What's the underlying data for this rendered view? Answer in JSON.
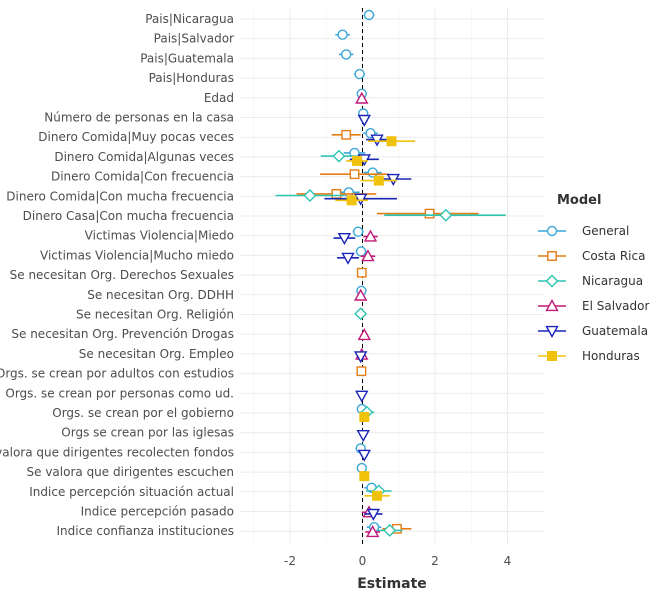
{
  "chart_data": {
    "type": "coefficient-plot",
    "title": "",
    "xlabel": "Estimate",
    "ylabel": "",
    "xlim": [
      -2.9,
      4.5
    ],
    "xticks": [
      -2,
      0,
      2,
      4
    ],
    "grid": true,
    "reference_line_x": 0,
    "legend": {
      "title": "Model",
      "position": "right"
    },
    "variables": [
      "Pais|Nicaragua",
      "Pais|Salvador",
      "Pais|Guatemala",
      "Pais|Honduras",
      "Edad",
      "Número de personas en la casa",
      "Dinero Comida|Muy pocas veces",
      "Dinero Comida|Algunas veces",
      "Dinero Comida|Con frecuencia",
      "Dinero Comida|Con mucha frecuencia",
      "Dinero Casa|Con mucha frecuencia",
      "Victimas Violencia|Miedo",
      "Victimas Violencia|Mucho miedo",
      "Se necesitan Org. Derechos Sexuales",
      "Se necesitan Org. DDHH",
      "Se necesitan Org. Religión",
      "Se necesitan Org. Prevención Drogas",
      "Se necesitan Org. Empleo",
      "Orgs. se crean por adultos con estudios",
      "Orgs. se crean por personas como ud.",
      "Orgs. se crean por el gobierno",
      "Orgs se crean por las iglesas",
      "Se valora que dirigentes recolecten fondos",
      "Se valora que dirigentes escuchen",
      "Indice percepción situación actual",
      "Indice percepción pasado",
      "Indice confianza instituciones"
    ],
    "series": [
      {
        "name": "General",
        "color": "#3aa6d9",
        "shape": "circle",
        "estimates": [
          0.18,
          -0.55,
          -0.45,
          -0.08,
          -0.02,
          0.02,
          0.22,
          -0.22,
          0.28,
          -0.38,
          null,
          -0.12,
          -0.04,
          null,
          -0.03,
          null,
          null,
          null,
          null,
          null,
          -0.02,
          null,
          -0.05,
          -0.02,
          0.25,
          null,
          0.32
        ],
        "lower": [
          0.03,
          -0.75,
          -0.65,
          -0.23,
          -0.07,
          -0.03,
          0.02,
          -0.52,
          0.03,
          -0.68,
          null,
          -0.27,
          -0.19,
          null,
          -0.13,
          null,
          null,
          null,
          null,
          null,
          -0.12,
          null,
          -0.15,
          -0.12,
          0.05,
          null,
          0.12
        ],
        "upper": [
          0.33,
          -0.35,
          -0.25,
          0.07,
          0.03,
          0.07,
          0.42,
          0.08,
          0.53,
          -0.08,
          null,
          0.03,
          0.11,
          null,
          0.07,
          null,
          null,
          null,
          null,
          null,
          0.08,
          null,
          0.05,
          0.08,
          0.45,
          null,
          0.52
        ]
      },
      {
        "name": "Costa Rica",
        "color": "#e57e14",
        "shape": "square",
        "estimates": [
          null,
          null,
          null,
          null,
          null,
          null,
          -0.45,
          null,
          -0.22,
          -0.72,
          1.85,
          null,
          null,
          -0.02,
          null,
          null,
          null,
          null,
          -0.03,
          null,
          null,
          null,
          null,
          null,
          null,
          null,
          0.95
        ],
        "lower": [
          null,
          null,
          null,
          null,
          null,
          null,
          -0.85,
          null,
          -1.17,
          -1.82,
          0.4,
          null,
          null,
          -0.12,
          null,
          null,
          null,
          null,
          -0.13,
          null,
          null,
          null,
          null,
          null,
          null,
          null,
          0.55
        ],
        "upper": [
          null,
          null,
          null,
          null,
          null,
          null,
          -0.05,
          null,
          0.73,
          0.38,
          3.2,
          null,
          null,
          0.08,
          null,
          null,
          null,
          null,
          0.07,
          null,
          null,
          null,
          null,
          null,
          null,
          null,
          1.35
        ]
      },
      {
        "name": "Nicaragua",
        "color": "#2ec4b0",
        "shape": "diamond",
        "estimates": [
          null,
          null,
          null,
          null,
          null,
          null,
          null,
          -0.65,
          null,
          -1.45,
          2.3,
          null,
          null,
          null,
          null,
          -0.05,
          null,
          null,
          null,
          null,
          0.12,
          null,
          null,
          null,
          0.45,
          null,
          0.75
        ],
        "lower": [
          null,
          null,
          null,
          null,
          null,
          null,
          null,
          -1.15,
          null,
          -2.4,
          0.6,
          null,
          null,
          null,
          null,
          -0.15,
          null,
          null,
          null,
          null,
          -0.08,
          null,
          null,
          null,
          0.1,
          null,
          0.4
        ],
        "upper": [
          null,
          null,
          null,
          null,
          null,
          null,
          null,
          -0.15,
          null,
          -0.5,
          3.95,
          null,
          null,
          null,
          null,
          0.05,
          null,
          null,
          null,
          null,
          0.32,
          null,
          null,
          null,
          0.8,
          null,
          1.1
        ]
      },
      {
        "name": "El Salvador",
        "color": "#c2197a",
        "shape": "triangle-up",
        "estimates": [
          null,
          null,
          null,
          null,
          -0.02,
          null,
          null,
          null,
          null,
          null,
          null,
          0.22,
          0.15,
          null,
          -0.05,
          null,
          0.05,
          -0.02,
          null,
          null,
          null,
          null,
          null,
          null,
          null,
          0.18,
          0.28
        ],
        "lower": [
          null,
          null,
          null,
          null,
          -0.12,
          null,
          null,
          null,
          null,
          null,
          null,
          0.02,
          -0.05,
          null,
          -0.15,
          null,
          -0.05,
          -0.12,
          null,
          null,
          null,
          null,
          null,
          null,
          null,
          -0.02,
          0.08
        ],
        "upper": [
          null,
          null,
          null,
          null,
          0.08,
          null,
          null,
          null,
          null,
          null,
          null,
          0.42,
          0.35,
          null,
          0.05,
          null,
          0.15,
          0.08,
          null,
          null,
          null,
          null,
          null,
          null,
          null,
          0.38,
          0.48
        ]
      },
      {
        "name": "Guatemala",
        "color": "#1a24b5",
        "shape": "triangle-down",
        "estimates": [
          null,
          null,
          null,
          null,
          null,
          0.05,
          0.4,
          0.05,
          0.85,
          -0.05,
          null,
          -0.5,
          -0.4,
          null,
          null,
          null,
          null,
          -0.05,
          null,
          -0.02,
          null,
          0.02,
          0.05,
          null,
          null,
          0.3,
          null
        ],
        "lower": [
          null,
          null,
          null,
          null,
          null,
          -0.05,
          0.1,
          -0.35,
          0.35,
          -1.05,
          null,
          -0.8,
          -0.7,
          null,
          null,
          null,
          null,
          -0.15,
          null,
          -0.12,
          null,
          -0.08,
          -0.05,
          null,
          null,
          0.05,
          null
        ],
        "upper": [
          null,
          null,
          null,
          null,
          null,
          0.15,
          0.7,
          0.45,
          1.35,
          0.95,
          null,
          -0.2,
          -0.1,
          null,
          null,
          null,
          null,
          0.05,
          null,
          0.08,
          null,
          0.12,
          0.15,
          null,
          null,
          0.55,
          null
        ]
      },
      {
        "name": "Honduras",
        "color": "#f0c20c",
        "shape": "square-filled",
        "estimates": [
          null,
          null,
          null,
          null,
          null,
          null,
          0.8,
          -0.15,
          0.45,
          -0.3,
          null,
          null,
          null,
          null,
          null,
          null,
          null,
          null,
          null,
          null,
          0.05,
          null,
          null,
          0.05,
          0.4,
          null,
          null
        ],
        "lower": [
          null,
          null,
          null,
          null,
          null,
          null,
          0.15,
          -0.45,
          -0.05,
          -0.75,
          null,
          null,
          null,
          null,
          null,
          null,
          null,
          null,
          null,
          null,
          -0.05,
          null,
          null,
          -0.05,
          0.05,
          null,
          null
        ],
        "upper": [
          null,
          null,
          null,
          null,
          null,
          null,
          1.45,
          0.15,
          0.95,
          0.15,
          null,
          null,
          null,
          null,
          null,
          null,
          null,
          null,
          null,
          null,
          0.15,
          null,
          null,
          0.15,
          0.75,
          null,
          null
        ]
      }
    ]
  }
}
